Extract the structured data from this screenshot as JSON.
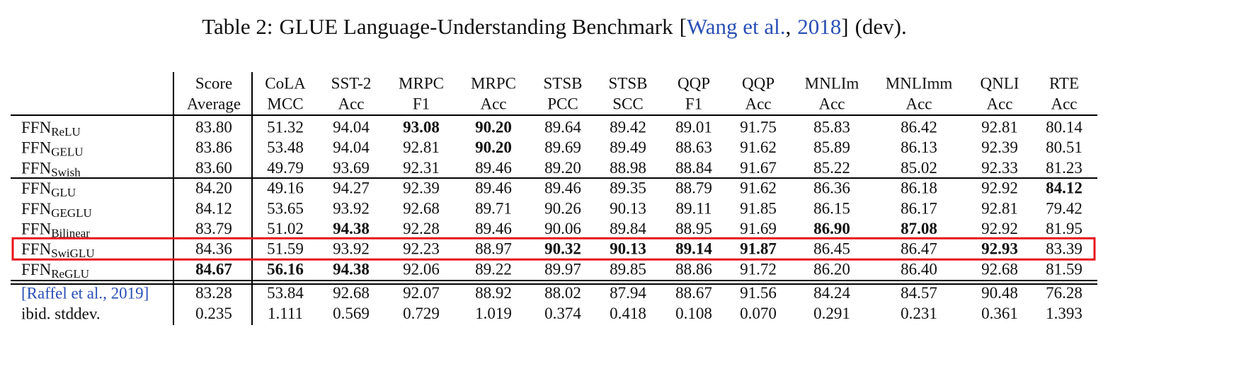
{
  "caption": {
    "label": "Table 2:",
    "text": "GLUE Language-Understanding Benchmark",
    "citation": {
      "open": "[",
      "authors": "Wang et al.",
      "sep": ",",
      "year": "2018",
      "close": "]"
    },
    "suffix": "(dev)."
  },
  "table": {
    "header": [
      [
        "Score",
        "Average"
      ],
      [
        "CoLA",
        "MCC"
      ],
      [
        "SST-2",
        "Acc"
      ],
      [
        "MRPC",
        "F1"
      ],
      [
        "MRPC",
        "Acc"
      ],
      [
        "STSB",
        "PCC"
      ],
      [
        "STSB",
        "SCC"
      ],
      [
        "QQP",
        "F1"
      ],
      [
        "QQP",
        "Acc"
      ],
      [
        "MNLIm",
        "Acc"
      ],
      [
        "MNLImm",
        "Acc"
      ],
      [
        "QNLI",
        "Acc"
      ],
      [
        "RTE",
        "Acc"
      ]
    ],
    "groups": [
      [
        {
          "name": "FFN",
          "sub": "ReLU",
          "cells": [
            "83.80",
            "51.32",
            "94.04",
            "93.08",
            "90.20",
            "89.64",
            "89.42",
            "89.01",
            "91.75",
            "85.83",
            "86.42",
            "92.81",
            "80.14"
          ],
          "bold": [
            3,
            4
          ]
        },
        {
          "name": "FFN",
          "sub": "GELU",
          "cells": [
            "83.86",
            "53.48",
            "94.04",
            "92.81",
            "90.20",
            "89.69",
            "89.49",
            "88.63",
            "91.62",
            "85.89",
            "86.13",
            "92.39",
            "80.51"
          ],
          "bold": [
            4
          ]
        },
        {
          "name": "FFN",
          "sub": "Swish",
          "cells": [
            "83.60",
            "49.79",
            "93.69",
            "92.31",
            "89.46",
            "89.20",
            "88.98",
            "88.84",
            "91.67",
            "85.22",
            "85.02",
            "92.33",
            "81.23"
          ],
          "bold": []
        }
      ],
      [
        {
          "name": "FFN",
          "sub": "GLU",
          "cells": [
            "84.20",
            "49.16",
            "94.27",
            "92.39",
            "89.46",
            "89.46",
            "89.35",
            "88.79",
            "91.62",
            "86.36",
            "86.18",
            "92.92",
            "84.12"
          ],
          "bold": [
            12
          ]
        },
        {
          "name": "FFN",
          "sub": "GEGLU",
          "cells": [
            "84.12",
            "53.65",
            "93.92",
            "92.68",
            "89.71",
            "90.26",
            "90.13",
            "89.11",
            "91.85",
            "86.15",
            "86.17",
            "92.81",
            "79.42"
          ],
          "bold": []
        },
        {
          "name": "FFN",
          "sub": "Bilinear",
          "cells": [
            "83.79",
            "51.02",
            "94.38",
            "92.28",
            "89.46",
            "90.06",
            "89.84",
            "88.95",
            "91.69",
            "86.90",
            "87.08",
            "92.92",
            "81.95"
          ],
          "bold": [
            2,
            9,
            10
          ]
        },
        {
          "name": "FFN",
          "sub": "SwiGLU",
          "cells": [
            "84.36",
            "51.59",
            "93.92",
            "92.23",
            "88.97",
            "90.32",
            "90.13",
            "89.14",
            "91.87",
            "86.45",
            "86.47",
            "92.93",
            "83.39"
          ],
          "bold": [
            5,
            6,
            7,
            8,
            11
          ],
          "highlighted": true
        },
        {
          "name": "FFN",
          "sub": "ReGLU",
          "cells": [
            "84.67",
            "56.16",
            "94.38",
            "92.06",
            "89.22",
            "89.97",
            "89.85",
            "88.86",
            "91.72",
            "86.20",
            "86.40",
            "92.68",
            "81.59"
          ],
          "bold": [
            0,
            1,
            2
          ]
        }
      ],
      [
        {
          "name": "[Raffel et al., 2019]",
          "link": true,
          "cells": [
            "83.28",
            "53.84",
            "92.68",
            "92.07",
            "88.92",
            "88.02",
            "87.94",
            "88.67",
            "91.56",
            "84.24",
            "84.57",
            "90.48",
            "76.28"
          ],
          "bold": []
        },
        {
          "name": "ibid. stddev.",
          "cells": [
            "0.235",
            "1.111",
            "0.569",
            "0.729",
            "1.019",
            "0.374",
            "0.418",
            "0.108",
            "0.070",
            "0.291",
            "0.231",
            "0.361",
            "1.393"
          ],
          "bold": []
        }
      ]
    ]
  }
}
